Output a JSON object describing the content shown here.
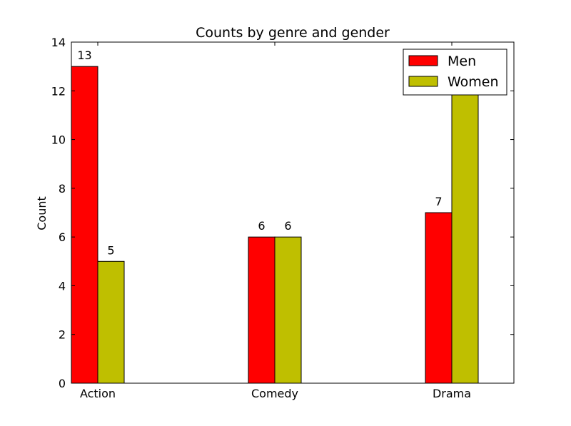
{
  "chart_data": {
    "type": "bar",
    "title": "Counts by genre and gender",
    "xlabel": "",
    "ylabel": "Count",
    "categories": [
      "Action",
      "Comedy",
      "Drama"
    ],
    "series": [
      {
        "name": "Men",
        "values": [
          13,
          6,
          7
        ],
        "color": "#ff0000"
      },
      {
        "name": "Women",
        "values": [
          5,
          6,
          13
        ],
        "color": "#bfbf00"
      }
    ],
    "ylim": [
      0,
      14
    ],
    "yticks": [
      0,
      2,
      4,
      6,
      8,
      10,
      12,
      14
    ],
    "grid": false,
    "legend": "top-right"
  }
}
